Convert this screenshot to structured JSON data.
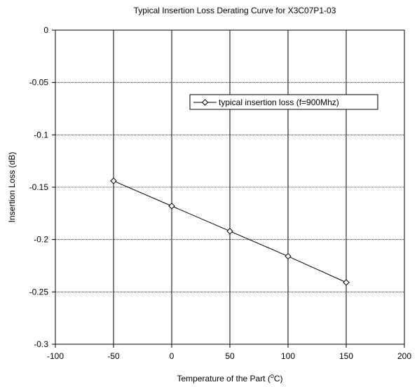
{
  "chart_data": {
    "type": "line",
    "title": "Typical Insertion Loss Derating Curve for X3C07P1-03",
    "xlabel": "Temperature of the Part (",
    "xlabel_sup": "o",
    "xlabel_suffix": "C)",
    "ylabel": "Insertion Loss (dB)",
    "xlim": [
      -100,
      200
    ],
    "ylim": [
      -0.3,
      0
    ],
    "xticks": [
      -100,
      -50,
      0,
      50,
      100,
      150,
      200
    ],
    "yticks": [
      0,
      -0.05,
      -0.1,
      -0.15,
      -0.2,
      -0.25,
      -0.3
    ],
    "xtick_labels": [
      "-100",
      "-50",
      "0",
      "50",
      "100",
      "150",
      "200"
    ],
    "ytick_labels": [
      "0",
      "-0.05",
      "-0.1",
      "-0.15",
      "-0.2",
      "-0.25",
      "-0.3"
    ],
    "grid": true,
    "legend_position": "upper-right",
    "series": [
      {
        "name": "typical insertion loss (f=900Mhz)",
        "marker": "diamond",
        "color": "#000000",
        "x": [
          -50,
          0,
          50,
          100,
          150
        ],
        "y": [
          -0.144,
          -0.168,
          -0.192,
          -0.216,
          -0.241
        ]
      }
    ]
  }
}
